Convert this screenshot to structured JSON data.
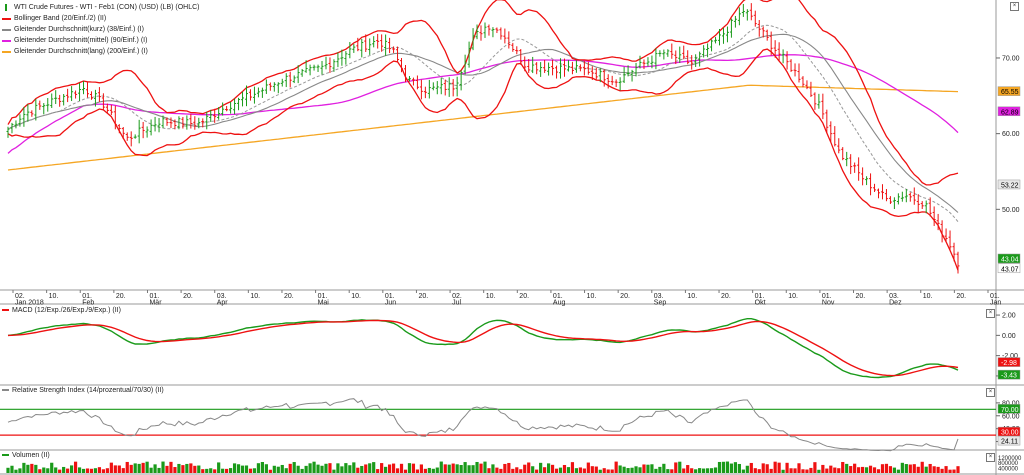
{
  "legend": [
    {
      "label": "WTI Crude Futures - WTI - Feb1 (CON) (USD) (LB) (OHLC)",
      "color": "#1a9a1a",
      "icon": "ohlc-bars-icon"
    },
    {
      "label": "Bollinger Band (20/Einf./2) (II)",
      "color": "#ee1111",
      "icon": "bollinger-icon"
    },
    {
      "label": "Gleitender Durchschnitt(kurz) (38/Einf.) (I)",
      "color": "#888888",
      "icon": "line-icon"
    },
    {
      "label": "Gleitender Durchschnitt(mittel) (90/Einf.) (I)",
      "color": "#e020e0",
      "icon": "line-icon"
    },
    {
      "label": "Gleitender Durchschnitt(lang) (200/Einf.) (I)",
      "color": "#f5a623",
      "icon": "line-icon"
    }
  ],
  "price_axis": {
    "ticks": [
      "70.00",
      "60.00",
      "50.00"
    ],
    "tags": [
      {
        "text": "65.55",
        "bg": "#f5a623",
        "fg": "#000000"
      },
      {
        "text": "62.89",
        "bg": "#e020e0",
        "fg": "#000000"
      },
      {
        "text": "53.22",
        "bg": "#e8e8e8",
        "fg": "#000000"
      },
      {
        "text": "43.04",
        "bg": "#1a9a1a",
        "fg": "#ffffff"
      },
      {
        "text": "43.07",
        "bg": "#ffffff",
        "fg": "#000000"
      }
    ]
  },
  "time_axis": {
    "labels": [
      {
        "top": "02.",
        "bottom": "Jan 2018"
      },
      {
        "top": "10.",
        "bottom": ""
      },
      {
        "top": "01.",
        "bottom": "Feb"
      },
      {
        "top": "20.",
        "bottom": ""
      },
      {
        "top": "01.",
        "bottom": "Mär"
      },
      {
        "top": "20.",
        "bottom": ""
      },
      {
        "top": "03.",
        "bottom": "Apr"
      },
      {
        "top": "10.",
        "bottom": ""
      },
      {
        "top": "20.",
        "bottom": ""
      },
      {
        "top": "01.",
        "bottom": "Mai"
      },
      {
        "top": "10.",
        "bottom": ""
      },
      {
        "top": "01.",
        "bottom": "Jun"
      },
      {
        "top": "20.",
        "bottom": ""
      },
      {
        "top": "02.",
        "bottom": "Jul"
      },
      {
        "top": "10.",
        "bottom": ""
      },
      {
        "top": "20.",
        "bottom": ""
      },
      {
        "top": "01.",
        "bottom": "Aug"
      },
      {
        "top": "10.",
        "bottom": ""
      },
      {
        "top": "20.",
        "bottom": ""
      },
      {
        "top": "03.",
        "bottom": "Sep"
      },
      {
        "top": "10.",
        "bottom": ""
      },
      {
        "top": "20.",
        "bottom": ""
      },
      {
        "top": "01.",
        "bottom": "Okt"
      },
      {
        "top": "10.",
        "bottom": ""
      },
      {
        "top": "01.",
        "bottom": "Nov"
      },
      {
        "top": "20.",
        "bottom": ""
      },
      {
        "top": "03.",
        "bottom": "Dez"
      },
      {
        "top": "10.",
        "bottom": ""
      },
      {
        "top": "20.",
        "bottom": ""
      },
      {
        "top": "01.",
        "bottom": "Jan"
      }
    ]
  },
  "macd_pane": {
    "title": "MACD (12/Exp./26/Exp./9/Exp.) (II)",
    "ticks": [
      "2.00",
      "0.00",
      "-2.00",
      "-4.00"
    ],
    "tags": [
      {
        "text": "-2.98",
        "bg": "#ee1111",
        "fg": "#ffffff"
      },
      {
        "text": "-3.43",
        "bg": "#1a9a1a",
        "fg": "#ffffff"
      }
    ]
  },
  "rsi_pane": {
    "title": "Relative Strength Index (14/prozentual/70/30) (II)",
    "ticks": [
      "80.00",
      "60.00",
      "40.00",
      "20.00"
    ],
    "tags": [
      {
        "text": "70.00",
        "bg": "#1a9a1a",
        "fg": "#ffffff"
      },
      {
        "text": "30.00",
        "bg": "#ee1111",
        "fg": "#ffffff"
      },
      {
        "text": "24.11",
        "bg": "#e8e8e8",
        "fg": "#000000"
      }
    ]
  },
  "volume_pane": {
    "title": "Volumen (II)",
    "ticks": [
      "1200000",
      "800000",
      "400000"
    ]
  },
  "close_icon": "close-icon",
  "chart_data": {
    "type": "ohlc",
    "title": "WTI Crude Futures - WTI - Feb1 (CON) (USD) (LB) (OHLC)",
    "price_ylim": [
      40,
      77
    ],
    "grid": false,
    "legend_placement": "top-left",
    "key_closes": {
      "jan_2018_start": 60.4,
      "late_jan_2018": 66.0,
      "mid_feb_2018": 59.2,
      "late_may_2018": 72.2,
      "late_jun_2018": 74.0,
      "aug_2018_low": 66.8,
      "early_oct_2018": 76.4,
      "late_nov_2018": 50.9,
      "last": 43.04
    },
    "last_price": 43.04,
    "ma_levels": {
      "sma38": 53.22,
      "sma90": 62.89,
      "sma200": 65.55
    },
    "macd": {
      "macd": -3.43,
      "signal": -2.98,
      "ylim": [
        -4.5,
        2.5
      ]
    },
    "rsi": {
      "overbought": 70,
      "oversold": 30,
      "last": 24.11,
      "ylim": [
        10,
        100
      ]
    },
    "volume": {
      "ylim": [
        0,
        1400000
      ]
    }
  }
}
